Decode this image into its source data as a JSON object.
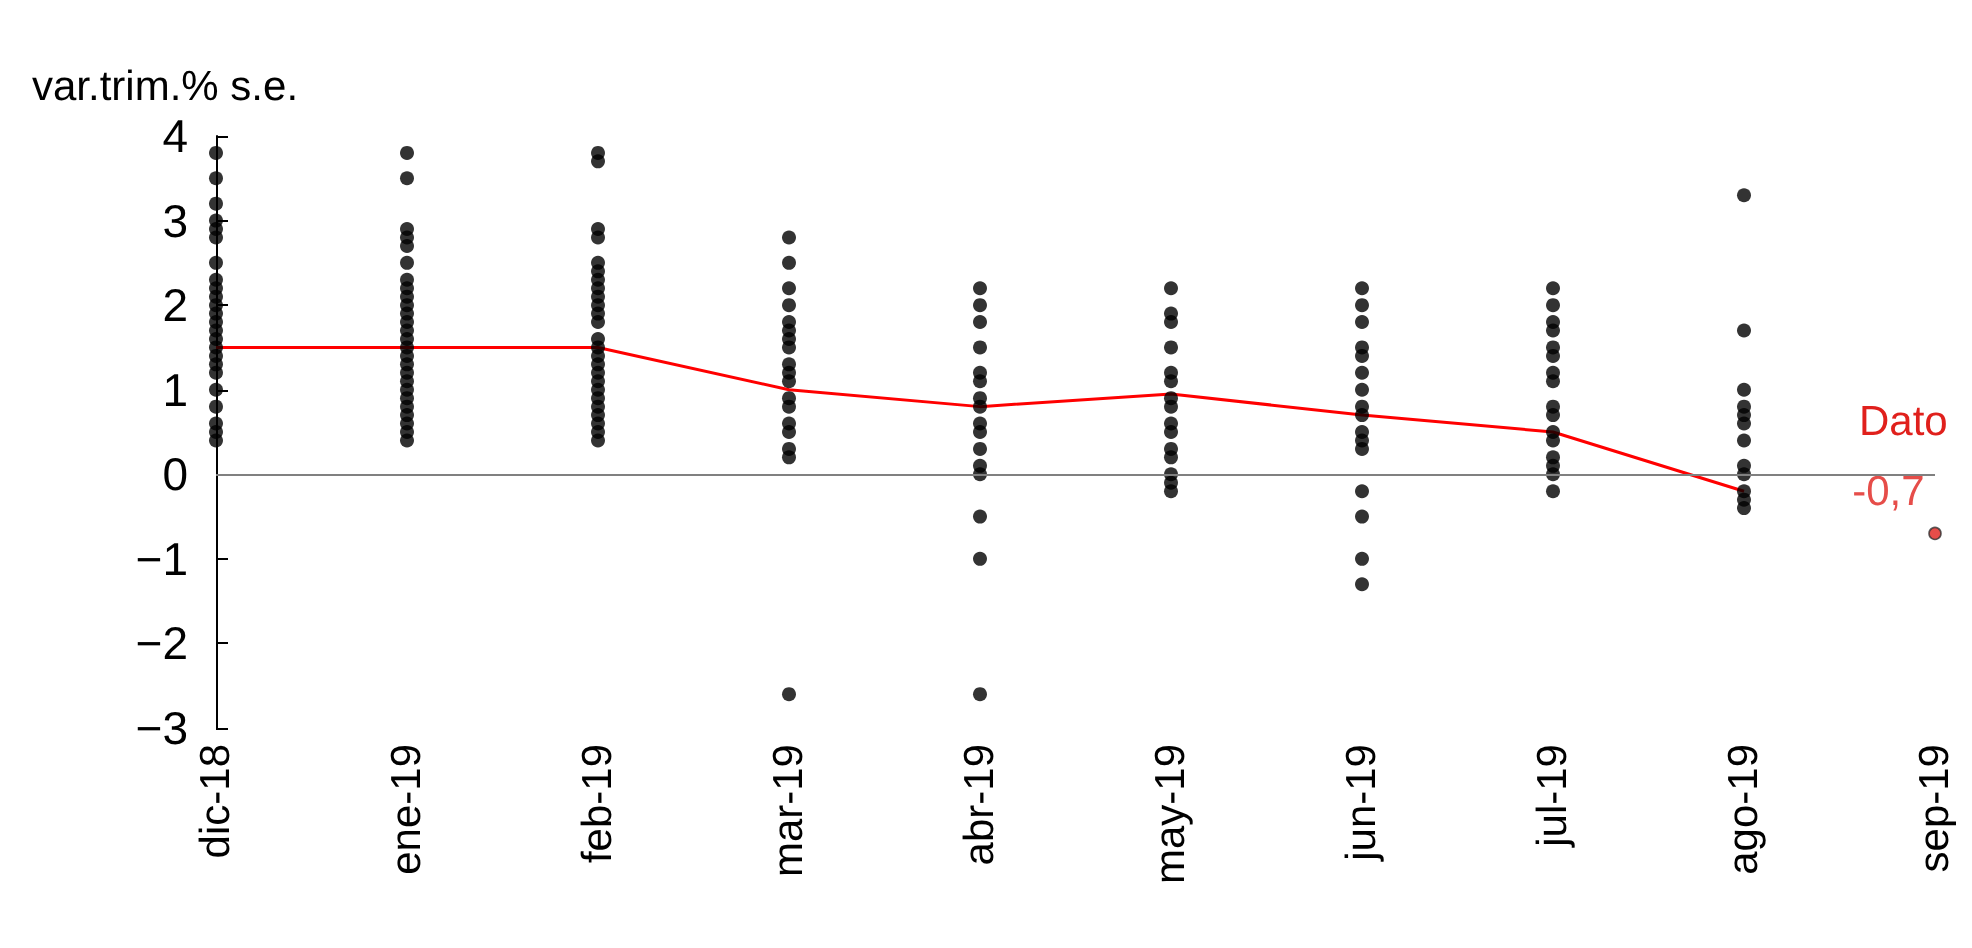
{
  "chart_data": {
    "type": "scatter",
    "ylabel": "var.trim.% s.e.",
    "categories": [
      "dic-18",
      "ene-19",
      "feb-19",
      "mar-19",
      "abr-19",
      "may-19",
      "jun-19",
      "jul-19",
      "ago-19",
      "sep-19"
    ],
    "series": [
      {
        "color": "#000000",
        "x": [
          "dic-18",
          "dic-18",
          "dic-18",
          "dic-18",
          "dic-18",
          "dic-18",
          "dic-18",
          "dic-18",
          "dic-18",
          "dic-18",
          "dic-18",
          "dic-18",
          "dic-18",
          "dic-18",
          "dic-18",
          "dic-18",
          "dic-18",
          "dic-18",
          "dic-18",
          "dic-18",
          "dic-18",
          "dic-18",
          "dic-18",
          "dic-18",
          "ene-19",
          "ene-19",
          "ene-19",
          "ene-19",
          "ene-19",
          "ene-19",
          "ene-19",
          "ene-19",
          "ene-19",
          "ene-19",
          "ene-19",
          "ene-19",
          "ene-19",
          "ene-19",
          "ene-19",
          "ene-19",
          "ene-19",
          "ene-19",
          "ene-19",
          "ene-19",
          "ene-19",
          "ene-19",
          "ene-19",
          "ene-19",
          "ene-19",
          "ene-19",
          "feb-19",
          "feb-19",
          "feb-19",
          "feb-19",
          "feb-19",
          "feb-19",
          "feb-19",
          "feb-19",
          "feb-19",
          "feb-19",
          "feb-19",
          "feb-19",
          "feb-19",
          "feb-19",
          "feb-19",
          "feb-19",
          "feb-19",
          "feb-19",
          "feb-19",
          "feb-19",
          "feb-19",
          "feb-19",
          "feb-19",
          "feb-19",
          "feb-19",
          "mar-19",
          "mar-19",
          "mar-19",
          "mar-19",
          "mar-19",
          "mar-19",
          "mar-19",
          "mar-19",
          "mar-19",
          "mar-19",
          "mar-19",
          "mar-19",
          "mar-19",
          "mar-19",
          "mar-19",
          "mar-19",
          "mar-19",
          "mar-19",
          "abr-19",
          "abr-19",
          "abr-19",
          "abr-19",
          "abr-19",
          "abr-19",
          "abr-19",
          "abr-19",
          "abr-19",
          "abr-19",
          "abr-19",
          "abr-19",
          "abr-19",
          "abr-19",
          "abr-19",
          "abr-19",
          "may-19",
          "may-19",
          "may-19",
          "may-19",
          "may-19",
          "may-19",
          "may-19",
          "may-19",
          "may-19",
          "may-19",
          "may-19",
          "may-19",
          "may-19",
          "may-19",
          "may-19",
          "jun-19",
          "jun-19",
          "jun-19",
          "jun-19",
          "jun-19",
          "jun-19",
          "jun-19",
          "jun-19",
          "jun-19",
          "jun-19",
          "jun-19",
          "jun-19",
          "jun-19",
          "jun-19",
          "jun-19",
          "jun-19",
          "jul-19",
          "jul-19",
          "jul-19",
          "jul-19",
          "jul-19",
          "jul-19",
          "jul-19",
          "jul-19",
          "jul-19",
          "jul-19",
          "jul-19",
          "jul-19",
          "jul-19",
          "jul-19",
          "jul-19",
          "jul-19",
          "ago-19",
          "ago-19",
          "ago-19",
          "ago-19",
          "ago-19",
          "ago-19",
          "ago-19",
          "ago-19",
          "ago-19",
          "ago-19",
          "ago-19",
          "ago-19"
        ],
        "values": [
          3.8,
          3.5,
          3.2,
          3.0,
          2.9,
          2.8,
          2.5,
          2.3,
          2.2,
          2.1,
          2.0,
          1.9,
          1.8,
          1.7,
          1.6,
          1.5,
          1.4,
          1.3,
          1.2,
          1.0,
          0.8,
          0.6,
          0.5,
          0.4,
          3.8,
          3.5,
          2.9,
          2.8,
          2.7,
          2.5,
          2.3,
          2.2,
          2.1,
          2.0,
          1.9,
          1.8,
          1.7,
          1.6,
          1.5,
          1.4,
          1.3,
          1.2,
          1.1,
          1.0,
          0.9,
          0.8,
          0.7,
          0.6,
          0.5,
          0.4,
          3.8,
          3.7,
          2.9,
          2.8,
          2.5,
          2.4,
          2.3,
          2.2,
          2.1,
          2.0,
          1.9,
          1.8,
          1.6,
          1.5,
          1.4,
          1.3,
          1.2,
          1.1,
          1.0,
          0.9,
          0.8,
          0.7,
          0.6,
          0.5,
          0.4,
          2.8,
          2.5,
          2.2,
          2.0,
          1.8,
          1.7,
          1.6,
          1.5,
          1.3,
          1.2,
          1.1,
          0.9,
          0.8,
          0.6,
          0.5,
          0.3,
          0.2,
          -2.6,
          2.2,
          2.0,
          1.8,
          1.5,
          1.2,
          1.1,
          0.9,
          0.8,
          0.6,
          0.5,
          0.3,
          0.1,
          0.0,
          -0.5,
          -1.0,
          -2.6,
          2.2,
          1.9,
          1.8,
          1.5,
          1.2,
          1.1,
          0.9,
          0.8,
          0.6,
          0.5,
          0.3,
          0.2,
          0.0,
          -0.1,
          -0.2,
          2.2,
          2.0,
          1.8,
          1.5,
          1.4,
          1.2,
          1.0,
          0.8,
          0.7,
          0.5,
          0.4,
          0.3,
          -0.2,
          -0.5,
          -1.0,
          -1.3,
          2.2,
          2.0,
          1.8,
          1.7,
          1.5,
          1.4,
          1.2,
          1.1,
          0.8,
          0.7,
          0.5,
          0.4,
          0.2,
          0.1,
          0.0,
          -0.2,
          3.3,
          1.7,
          1.0,
          0.8,
          0.7,
          0.6,
          0.4,
          0.1,
          0.0,
          -0.2,
          -0.3,
          -0.4
        ]
      },
      {
        "type": "line",
        "color": "#ff0000",
        "marker": "none",
        "values": [
          1.5,
          1.5,
          1.5,
          1.0,
          0.8,
          0.95,
          0.7,
          0.5,
          -0.2,
          null
        ]
      },
      {
        "color": "#e0201c",
        "values": [
          null,
          null,
          null,
          null,
          null,
          null,
          null,
          null,
          null,
          -0.7
        ],
        "value_labels": [
          null,
          null,
          null,
          null,
          null,
          null,
          null,
          null,
          null,
          "-0,7"
        ]
      }
    ],
    "annotations": [
      {
        "text": "Dato",
        "x": "sep-19",
        "y": -0.7
      }
    ],
    "ylim": [
      -3,
      4
    ],
    "yticks": [
      -3,
      -2,
      -1,
      0,
      1,
      2,
      3,
      4
    ],
    "ref_lines": [
      {
        "axis": "y",
        "value": 0,
        "color": "#808080"
      }
    ],
    "marker": "circle",
    "grid": false
  }
}
